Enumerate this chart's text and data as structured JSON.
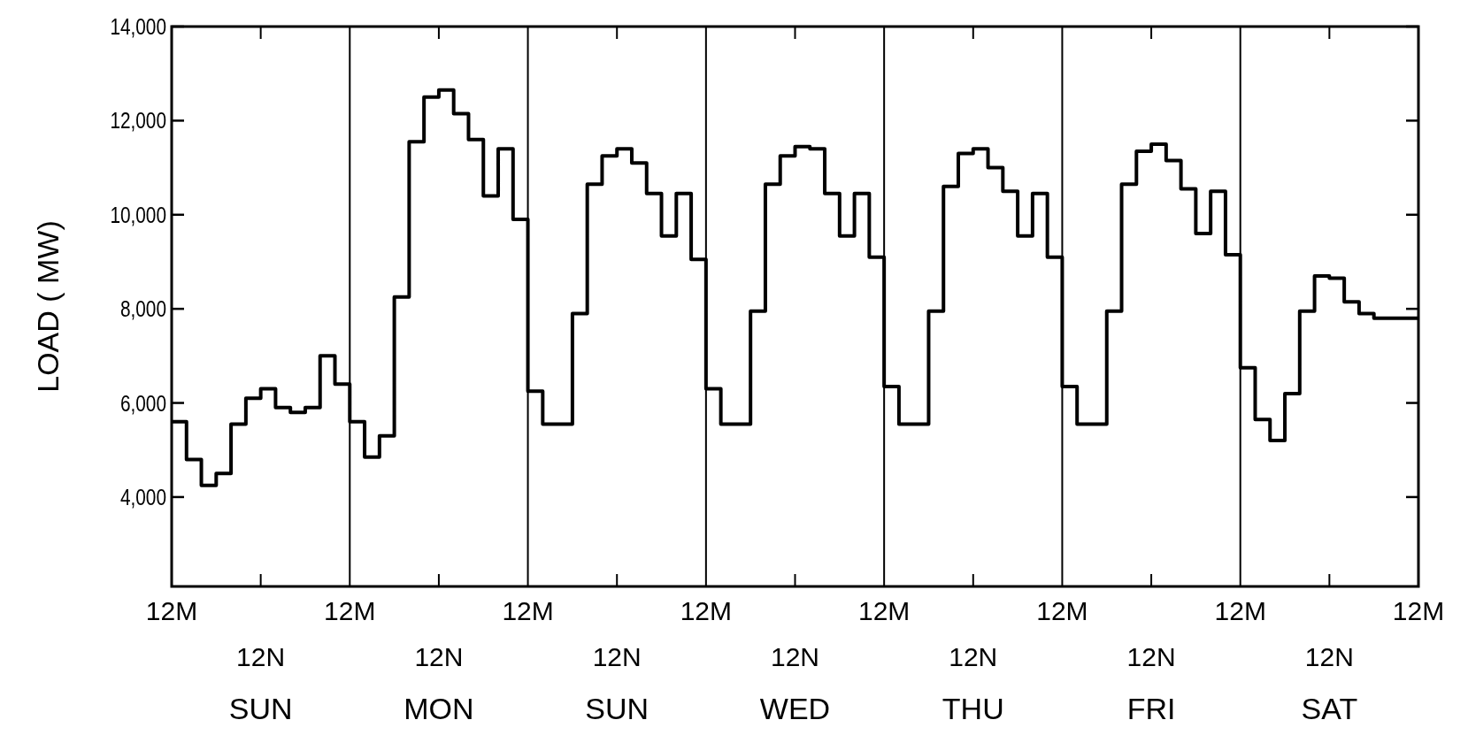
{
  "chart_data": {
    "type": "step",
    "ylabel": "LOAD ( MW)",
    "ylim": [
      2100,
      14000
    ],
    "grid": "x",
    "yticks": [
      {
        "value": 4000,
        "label": "4,000"
      },
      {
        "value": 6000,
        "label": "6,000"
      },
      {
        "value": 8000,
        "label": "8,000"
      },
      {
        "value": 10000,
        "label": "10,000"
      },
      {
        "value": 12000,
        "label": "12,000"
      },
      {
        "value": 14000,
        "label": "14,000"
      }
    ],
    "annotations": [
      "12M",
      "12M",
      "12M",
      "12M",
      "12M",
      "12M",
      "12M",
      "12M",
      "12N",
      "12N",
      "12N",
      "12N",
      "12N",
      "12N",
      "12N",
      "SUN",
      "MON",
      "SUN",
      "WED",
      "THU",
      "FRI",
      "SAT"
    ],
    "categories": [
      null,
      null,
      null,
      null,
      null,
      null,
      null,
      null,
      null,
      null,
      null,
      null,
      null,
      null,
      null,
      null,
      null,
      null,
      null,
      null,
      null,
      null,
      null,
      null,
      null,
      null,
      null,
      null,
      null,
      null,
      null,
      null,
      null,
      null,
      null,
      null,
      null,
      null,
      null,
      null,
      null,
      null,
      null,
      null,
      null,
      null,
      null,
      null,
      null,
      null,
      null,
      null,
      null,
      null,
      null,
      null,
      null,
      null,
      null,
      null,
      null,
      null,
      null,
      null,
      null,
      null,
      null,
      null,
      null,
      null,
      null,
      null,
      null,
      null,
      null,
      null,
      null,
      null,
      null,
      null,
      null,
      null,
      null,
      null,
      null
    ],
    "series": [
      {
        "color": "#000000",
        "values": [
          5600,
          4800,
          4250,
          4500,
          5550,
          6100,
          6300,
          5900,
          5800,
          5900,
          7000,
          6400,
          5600,
          4850,
          5300,
          8250,
          11550,
          12500,
          12650,
          12150,
          11600,
          10400,
          11400,
          9900,
          6250,
          5550,
          5550,
          7900,
          10650,
          11250,
          11400,
          11100,
          10450,
          9550,
          10450,
          9050,
          6300,
          5550,
          5550,
          7950,
          10650,
          11250,
          11450,
          11400,
          10450,
          9550,
          10450,
          9100,
          6350,
          5550,
          5550,
          7950,
          10600,
          11300,
          11400,
          11000,
          10500,
          9550,
          10450,
          9100,
          6350,
          5550,
          5550,
          7950,
          10650,
          11350,
          11500,
          11150,
          10550,
          9600,
          10500,
          9150,
          6750,
          5650,
          5200,
          6200,
          7950,
          8700,
          8650,
          8150,
          7900,
          7800,
          7800,
          7800,
          7800
        ]
      }
    ]
  }
}
